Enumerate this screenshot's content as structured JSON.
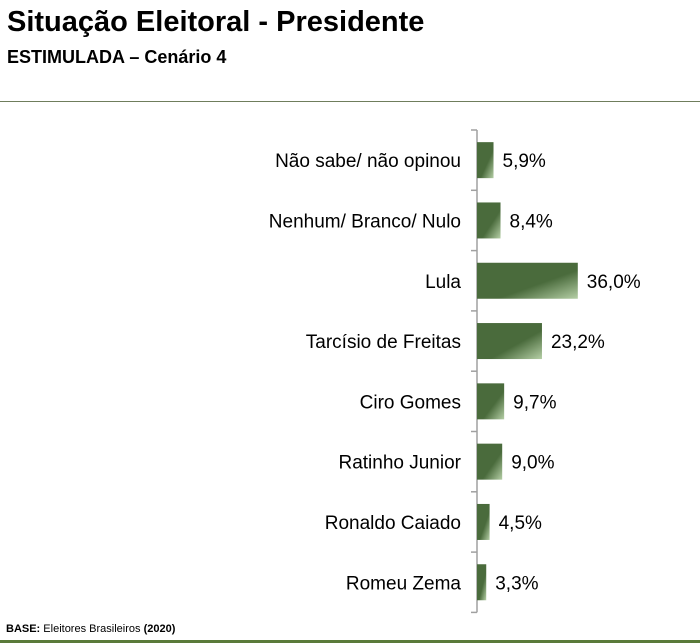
{
  "header": {
    "title": "Situação Eleitoral - Presidente",
    "subtitle": "ESTIMULADA – Cenário 4"
  },
  "footer": {
    "base_label": "BASE:",
    "base_text": " Eleitores Brasileiros ",
    "base_year": "(2020)"
  },
  "colors": {
    "bar": "#4a6b3c",
    "bar_highlight": "#a9c59a",
    "axis": "#a0a0a0"
  },
  "chart_data": {
    "type": "bar",
    "orientation": "horizontal",
    "categories": [
      "Não sabe/ não opinou",
      "Nenhum/ Branco/ Nulo",
      "Lula",
      "Tarcísio de Freitas",
      "Ciro Gomes",
      "Ratinho Junior",
      "Ronaldo Caiado",
      "Romeu Zema"
    ],
    "values": [
      5.9,
      8.4,
      36.0,
      23.2,
      9.7,
      9.0,
      4.5,
      3.3
    ],
    "labels": [
      "5,9%",
      "8,4%",
      "36,0%",
      "23,2%",
      "9,7%",
      "9,0%",
      "4,5%",
      "3,3%"
    ],
    "unit": "%",
    "grid": false
  }
}
